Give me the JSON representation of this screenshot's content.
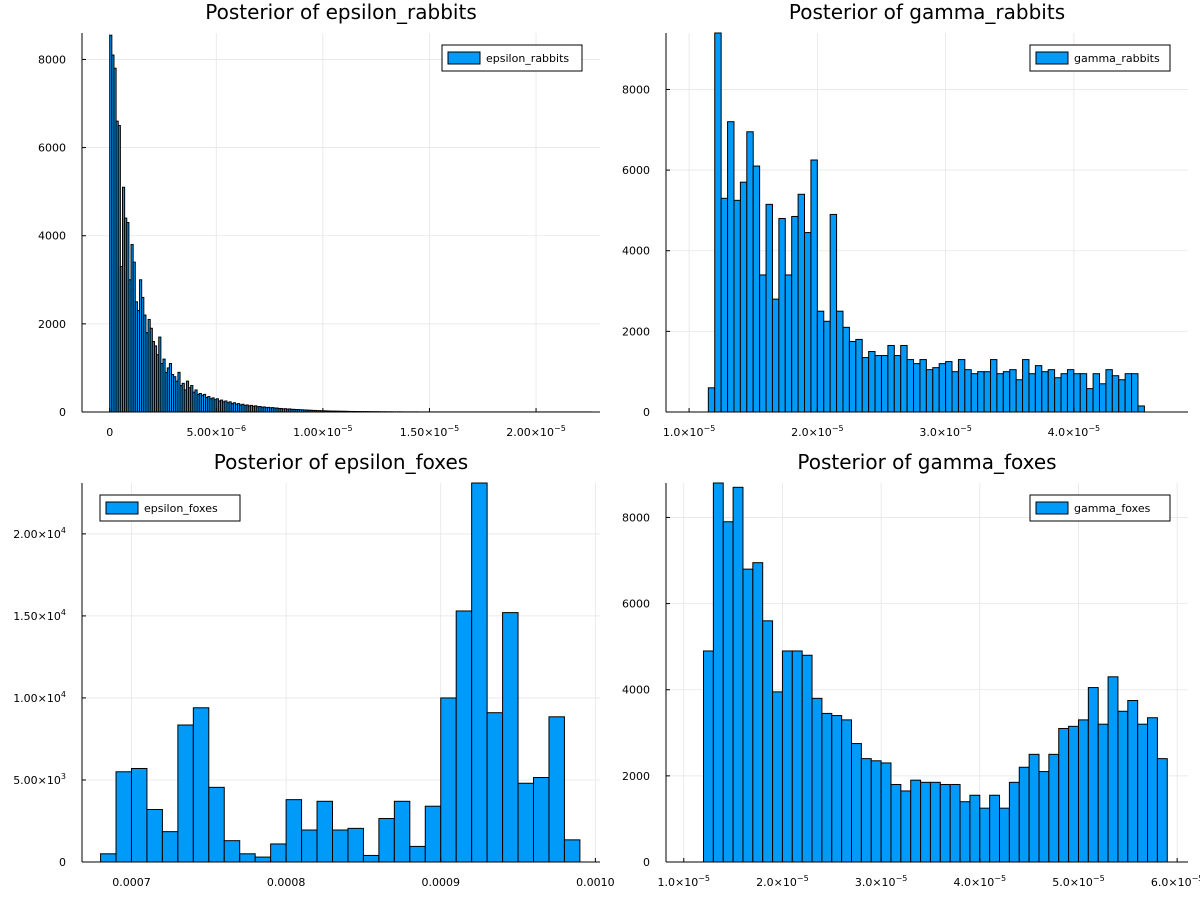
{
  "chart_data": [
    {
      "type": "bar",
      "title": "Posterior of epsilon_rabbits",
      "legend": "epsilon_rabbits",
      "legend_position": "top-right",
      "grid": true,
      "bar_color": "#009AF9",
      "xlim": [
        -1.3e-06,
        2.3e-05
      ],
      "ylim": [
        0,
        8600
      ],
      "x_ticks": [
        {
          "v": 0,
          "m": "0",
          "e": ""
        },
        {
          "v": 5e-06,
          "m": "5.00×10",
          "e": "−6"
        },
        {
          "v": 1e-05,
          "m": "1.00×10",
          "e": "−5"
        },
        {
          "v": 1.5e-05,
          "m": "1.50×10",
          "e": "−5"
        },
        {
          "v": 2e-05,
          "m": "2.00×10",
          "e": "−5"
        }
      ],
      "y_ticks": [
        {
          "v": 0,
          "m": "0",
          "e": ""
        },
        {
          "v": 2000,
          "m": "2000",
          "e": ""
        },
        {
          "v": 4000,
          "m": "4000",
          "e": ""
        },
        {
          "v": 6000,
          "m": "6000",
          "e": ""
        },
        {
          "v": 8000,
          "m": "8000",
          "e": ""
        }
      ],
      "bins": {
        "start": 0,
        "width": 1e-07
      },
      "values": [
        8550,
        8100,
        7800,
        6600,
        6500,
        3300,
        5100,
        4400,
        4300,
        3000,
        3800,
        3400,
        2500,
        2300,
        3000,
        2600,
        2200,
        1800,
        2100,
        1900,
        1600,
        1500,
        1300,
        1700,
        1100,
        1200,
        900,
        1000,
        1100,
        850,
        800,
        700,
        900,
        600,
        650,
        500,
        700,
        550,
        600,
        450,
        500,
        400,
        420,
        380,
        400,
        330,
        350,
        300,
        320,
        280,
        300,
        250,
        270,
        230,
        250,
        210,
        230,
        190,
        210,
        180,
        190,
        160,
        175,
        150,
        160,
        140,
        150,
        130,
        140,
        120,
        125,
        110,
        115,
        100,
        105,
        95,
        100,
        90,
        90,
        80,
        80,
        70,
        75,
        65,
        70,
        60,
        60,
        55,
        55,
        50,
        50,
        45,
        45,
        40,
        40,
        35,
        35,
        30,
        30,
        28,
        27,
        25,
        24,
        22,
        21,
        20,
        19,
        18,
        17,
        16,
        15,
        14,
        13,
        12,
        12,
        11,
        10,
        10,
        9,
        9,
        8,
        8,
        7,
        7,
        6,
        6,
        6,
        5,
        5,
        5,
        4,
        4,
        4,
        3,
        3,
        3,
        3,
        3,
        2,
        2,
        2,
        2,
        2,
        2,
        2,
        1,
        1,
        1,
        1,
        1,
        1,
        1,
        1,
        1,
        1,
        1,
        1,
        1,
        1,
        1,
        1,
        1,
        1,
        1,
        1,
        1,
        1,
        1,
        1,
        1,
        1,
        1,
        1,
        1,
        1,
        1,
        1,
        1,
        1,
        1,
        1,
        1,
        1,
        1,
        1,
        1,
        1,
        1,
        1,
        1,
        1,
        1,
        1,
        1,
        1,
        1,
        1,
        1,
        1,
        1,
        1,
        1,
        1,
        1,
        1,
        1,
        1,
        1,
        1,
        1,
        1,
        1,
        1,
        1,
        1,
        1,
        1,
        1,
        1,
        1,
        1,
        1,
        1,
        1,
        1,
        1
      ]
    },
    {
      "type": "bar",
      "title": "Posterior of gamma_rabbits",
      "legend": "gamma_rabbits",
      "legend_position": "top-right",
      "grid": true,
      "bar_color": "#009AF9",
      "xlim": [
        8.2e-06,
        4.89e-05
      ],
      "ylim": [
        0,
        9400
      ],
      "x_ticks": [
        {
          "v": 1e-05,
          "m": "1.0×10",
          "e": "−5"
        },
        {
          "v": 2e-05,
          "m": "2.0×10",
          "e": "−5"
        },
        {
          "v": 3e-05,
          "m": "3.0×10",
          "e": "−5"
        },
        {
          "v": 4e-05,
          "m": "4.0×10",
          "e": "−5"
        }
      ],
      "y_ticks": [
        {
          "v": 0,
          "m": "0",
          "e": ""
        },
        {
          "v": 2000,
          "m": "2000",
          "e": ""
        },
        {
          "v": 4000,
          "m": "4000",
          "e": ""
        },
        {
          "v": 6000,
          "m": "6000",
          "e": ""
        },
        {
          "v": 8000,
          "m": "8000",
          "e": ""
        }
      ],
      "bins": {
        "start": 1.15e-05,
        "width": 5e-07
      },
      "values": [
        600,
        9400,
        5300,
        7200,
        5250,
        5700,
        6950,
        6100,
        3400,
        5150,
        2800,
        4800,
        3400,
        4850,
        5400,
        4450,
        6250,
        2500,
        2250,
        4900,
        2500,
        2100,
        1750,
        1800,
        1350,
        1500,
        1400,
        1400,
        1650,
        1400,
        1650,
        1300,
        1200,
        1300,
        1050,
        1100,
        1200,
        1250,
        1000,
        1300,
        1050,
        950,
        1000,
        1000,
        1300,
        950,
        1000,
        1050,
        800,
        1300,
        950,
        1150,
        1000,
        1050,
        850,
        950,
        1050,
        950,
        950,
        580,
        950,
        700,
        1050,
        900,
        800,
        950,
        950,
        150
      ]
    },
    {
      "type": "bar",
      "title": "Posterior of epsilon_foxes",
      "legend": "epsilon_foxes",
      "legend_position": "top-left",
      "grid": true,
      "bar_color": "#009AF9",
      "xlim": [
        0.000668,
        0.001003
      ],
      "ylim": [
        0,
        23100
      ],
      "x_ticks": [
        {
          "v": 0.0007,
          "m": "0.0007",
          "e": ""
        },
        {
          "v": 0.0008,
          "m": "0.0008",
          "e": ""
        },
        {
          "v": 0.0009,
          "m": "0.0009",
          "e": ""
        },
        {
          "v": 0.001,
          "m": "0.0010",
          "e": ""
        }
      ],
      "y_ticks": [
        {
          "v": 0,
          "m": "0",
          "e": ""
        },
        {
          "v": 5000,
          "m": "5.00×10",
          "e": "3"
        },
        {
          "v": 10000,
          "m": "1.00×10",
          "e": "4"
        },
        {
          "v": 15000,
          "m": "1.50×10",
          "e": "4"
        },
        {
          "v": 20000,
          "m": "2.00×10",
          "e": "4"
        }
      ],
      "bins": {
        "start": 0.00068,
        "width": 1e-05
      },
      "values": [
        500,
        5500,
        5700,
        3200,
        1850,
        8350,
        9400,
        4550,
        1300,
        500,
        300,
        1100,
        3800,
        1950,
        3700,
        1950,
        2050,
        400,
        2650,
        3700,
        950,
        3400,
        10000,
        15300,
        23100,
        9100,
        15200,
        4800,
        5150,
        8850,
        1350
      ]
    },
    {
      "type": "bar",
      "title": "Posterior of gamma_foxes",
      "legend": "gamma_foxes",
      "legend_position": "top-right",
      "grid": true,
      "bar_color": "#009AF9",
      "xlim": [
        8.2e-06,
        6.11e-05
      ],
      "ylim": [
        0,
        8800
      ],
      "x_ticks": [
        {
          "v": 1e-05,
          "m": "1.0×10",
          "e": "−5"
        },
        {
          "v": 2e-05,
          "m": "2.0×10",
          "e": "−5"
        },
        {
          "v": 3e-05,
          "m": "3.0×10",
          "e": "−5"
        },
        {
          "v": 4e-05,
          "m": "4.0×10",
          "e": "−5"
        },
        {
          "v": 5e-05,
          "m": "5.0×10",
          "e": "−5"
        },
        {
          "v": 6e-05,
          "m": "6.0×10",
          "e": "−5"
        }
      ],
      "y_ticks": [
        {
          "v": 0,
          "m": "0",
          "e": ""
        },
        {
          "v": 2000,
          "m": "2000",
          "e": ""
        },
        {
          "v": 4000,
          "m": "4000",
          "e": ""
        },
        {
          "v": 6000,
          "m": "6000",
          "e": ""
        },
        {
          "v": 8000,
          "m": "8000",
          "e": ""
        }
      ],
      "bins": {
        "start": 1.2e-05,
        "width": 1e-06
      },
      "values": [
        4900,
        8800,
        7900,
        8700,
        6800,
        6950,
        5600,
        3950,
        4900,
        4900,
        4800,
        3800,
        3450,
        3400,
        3300,
        2750,
        2400,
        2350,
        2300,
        1800,
        1650,
        1900,
        1850,
        1850,
        1800,
        1800,
        1400,
        1550,
        1250,
        1550,
        1250,
        1850,
        2200,
        2500,
        2100,
        2500,
        3100,
        3150,
        3300,
        4050,
        3200,
        4300,
        3500,
        3750,
        3200,
        3350,
        2400
      ]
    }
  ]
}
